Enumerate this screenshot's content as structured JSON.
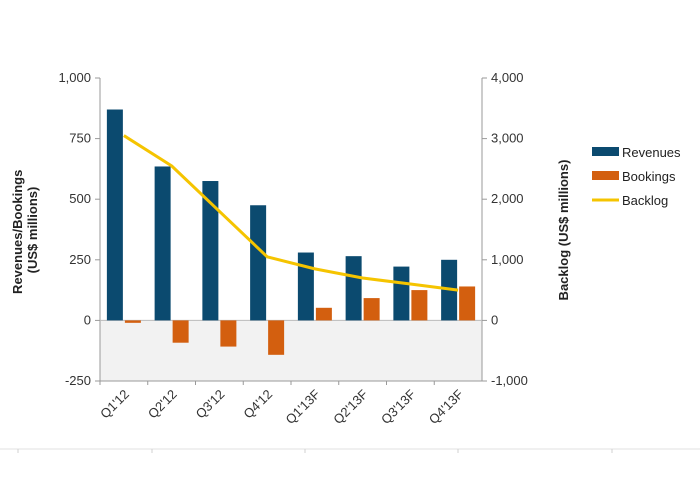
{
  "chart_data": {
    "type": "bar",
    "categories": [
      "Q1'12",
      "Q2'12",
      "Q3'12",
      "Q4'12",
      "Q1'13F",
      "Q2'13F",
      "Q3'13F",
      "Q4'13F"
    ],
    "series": [
      {
        "name": "Revenues",
        "type": "bar",
        "axis": "left",
        "color": "#0B4A6F",
        "values": [
          870,
          635,
          575,
          475,
          280,
          265,
          222,
          250
        ]
      },
      {
        "name": "Bookings",
        "type": "bar",
        "axis": "left",
        "color": "#D35F0F",
        "values": [
          -10,
          -92,
          -108,
          -142,
          52,
          92,
          125,
          140
        ]
      },
      {
        "name": "Backlog",
        "type": "line",
        "axis": "right",
        "color": "#F5C400",
        "values": [
          3050,
          2550,
          1800,
          1050,
          850,
          700,
          600,
          500
        ]
      }
    ],
    "ylabel": "Revenues/Bookings (US$ millions)",
    "ylabel_lines": [
      "Revenues/Bookings",
      "(US$ millions)"
    ],
    "y2label": "Backlog (US$ millions)",
    "ylim": [
      -250,
      1000
    ],
    "y2lim": [
      -1000,
      4000
    ],
    "yticks": [
      -250,
      0,
      250,
      500,
      750,
      1000
    ],
    "y2ticks": [
      -1000,
      0,
      1000,
      2000,
      3000,
      4000
    ],
    "ytick_labels": [
      "-250",
      "0",
      "250",
      "500",
      "750",
      "1,000"
    ],
    "y2tick_labels": [
      "-1,000",
      "0",
      "1,000",
      "2,000",
      "3,000",
      "4,000"
    ],
    "legend_position": "right",
    "negative_region_fill": "#F2F2F2"
  }
}
